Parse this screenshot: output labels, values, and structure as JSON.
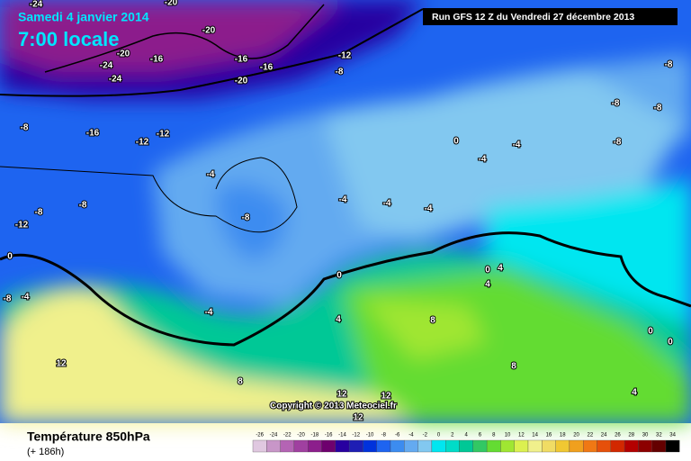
{
  "header": {
    "date": "Samedi 4 janvier 2014",
    "time": "7:00 locale",
    "run": "Run GFS 12 Z du Vendredi 27 décembre 2013"
  },
  "copyright": "Copyright © 2013 Meteociel.fr",
  "footer": {
    "title": "Température 850hPa",
    "lead": "(+ 186h)"
  },
  "legend": {
    "labels": [
      "-26",
      "-24",
      "-22",
      "-20",
      "-18",
      "-16",
      "-14",
      "-12",
      "-10",
      "-8",
      "-6",
      "-4",
      "-2",
      "0",
      "2",
      "4",
      "6",
      "8",
      "10",
      "12",
      "14",
      "16",
      "18",
      "20",
      "22",
      "24",
      "26",
      "28",
      "30",
      "32",
      "34"
    ],
    "colors": [
      "#e0c8e0",
      "#c896c8",
      "#b464b4",
      "#a040a0",
      "#8c1e8c",
      "#6e006e",
      "#2800a0",
      "#1e1eb4",
      "#0032dc",
      "#1e64f0",
      "#3c8cf0",
      "#64aaf0",
      "#82c8f0",
      "#00e6f0",
      "#00dcc8",
      "#00c896",
      "#32c864",
      "#64dc32",
      "#a0e632",
      "#dcf050",
      "#f0f08c",
      "#f0dc64",
      "#f0c832",
      "#f0a01e",
      "#f07814",
      "#e6500a",
      "#d22800",
      "#b40000",
      "#8c0000",
      "#640000",
      "#000000"
    ]
  },
  "contour_labels": [
    "-24",
    "-20",
    "-20",
    "-24",
    "-24",
    "-20",
    "-16",
    "-16",
    "-16",
    "-20",
    "-12",
    "-8",
    "-16",
    "-12",
    "-12",
    "-8",
    "-8",
    "-8",
    "-12",
    "-4",
    "-8",
    "-4",
    "-4",
    "-4",
    "0",
    "-4",
    "-4",
    "-8",
    "-8",
    "-8",
    "-8",
    "0",
    "-8",
    "-4",
    "-4",
    "0",
    "4",
    "0",
    "4",
    "8",
    "12",
    "8",
    "12",
    "12",
    "12",
    "8",
    "4",
    "0",
    "0",
    "4"
  ]
}
